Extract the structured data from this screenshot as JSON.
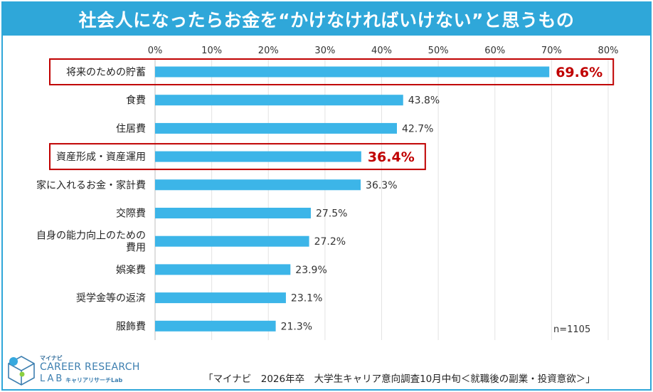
{
  "title": "社会人になったらお金を“かけなければいけない”と思うもの",
  "chart_data": {
    "type": "bar",
    "orientation": "horizontal",
    "title": "社会人になったらお金を“かけなければいけない”と思うもの",
    "xlabel": "",
    "ylabel": "",
    "xlim": [
      0,
      80
    ],
    "ticks": [
      "0%",
      "10%",
      "20%",
      "30%",
      "40%",
      "50%",
      "60%",
      "70%",
      "80%"
    ],
    "tick_values": [
      0,
      10,
      20,
      30,
      40,
      50,
      60,
      70,
      80
    ],
    "categories": [
      [
        "将来のための貯蓄"
      ],
      [
        "食費"
      ],
      [
        "住居費"
      ],
      [
        "資産形成・資産運用"
      ],
      [
        "家に入れるお金・家計費"
      ],
      [
        "交際費"
      ],
      [
        "自身の能力向上のための",
        "費用"
      ],
      [
        "娯楽費"
      ],
      [
        "奨学金等の返済"
      ],
      [
        "服飾費"
      ]
    ],
    "values": [
      69.6,
      43.8,
      42.7,
      36.4,
      36.3,
      27.5,
      27.2,
      23.9,
      23.1,
      21.3
    ],
    "value_labels": [
      "69.6%",
      "43.8%",
      "42.7%",
      "36.4%",
      "36.3%",
      "27.5%",
      "27.2%",
      "23.9%",
      "23.1%",
      "21.3%"
    ],
    "highlighted": [
      0,
      3
    ],
    "bar_color": "#3cb5e8",
    "highlight_color": "#c00000"
  },
  "sample_size": "n=1105",
  "source": "「マイナビ　2026年卒　大学生キャリア意向調査10月中旬＜就職後の副業・投資意欲＞」",
  "logo": {
    "top": "マイナビ",
    "main": "CAREER RESEARCH",
    "lab": "LAB",
    "sub": "キャリアリサーチLab"
  },
  "colors": {
    "accent": "#2fa7d9",
    "bar": "#3cb5e8",
    "highlight": "#c00000"
  }
}
